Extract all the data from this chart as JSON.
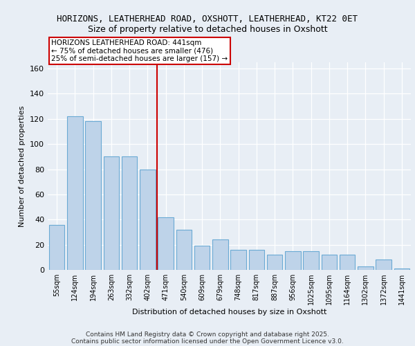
{
  "title1": "HORIZONS, LEATHERHEAD ROAD, OXSHOTT, LEATHERHEAD, KT22 0ET",
  "title2": "Size of property relative to detached houses in Oxshott",
  "xlabel": "Distribution of detached houses by size in Oxshott",
  "ylabel": "Number of detached properties",
  "categories": [
    "55sqm",
    "124sqm",
    "194sqm",
    "263sqm",
    "332sqm",
    "402sqm",
    "471sqm",
    "540sqm",
    "609sqm",
    "679sqm",
    "748sqm",
    "817sqm",
    "887sqm",
    "956sqm",
    "1025sqm",
    "1095sqm",
    "1164sqm",
    "1302sqm",
    "1372sqm",
    "1441sqm"
  ],
  "values": [
    36,
    122,
    118,
    90,
    90,
    80,
    42,
    32,
    19,
    24,
    16,
    16,
    12,
    15,
    15,
    12,
    12,
    3,
    8,
    1
  ],
  "bar_color": "#bed3e9",
  "bar_edge_color": "#6aaad4",
  "vline_color": "#cc0000",
  "annotation_text": "HORIZONS LEATHERHEAD ROAD: 441sqm\n← 75% of detached houses are smaller (476)\n25% of semi-detached houses are larger (157) →",
  "ylim": [
    0,
    165
  ],
  "yticks": [
    0,
    20,
    40,
    60,
    80,
    100,
    120,
    140,
    160
  ],
  "footer1": "Contains HM Land Registry data © Crown copyright and database right 2025.",
  "footer2": "Contains public sector information licensed under the Open Government Licence v3.0.",
  "bg_color": "#e8eef5",
  "plot_bg_color": "#e8eef5",
  "grid_color": "#ffffff",
  "title_fontsize": 9,
  "subtitle_fontsize": 9
}
